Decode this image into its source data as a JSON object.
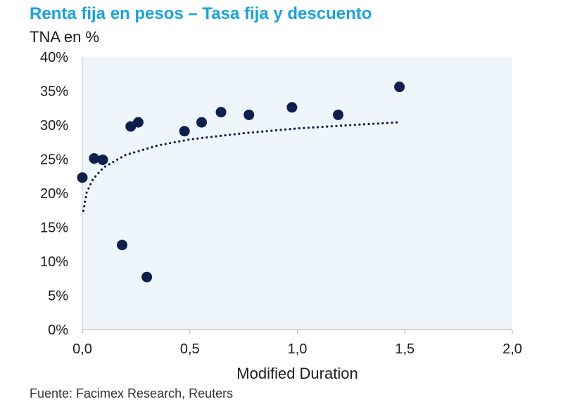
{
  "title": "Renta fija en pesos – Tasa fija y descuento",
  "subtitle": "TNA en %",
  "source": "Fuente: Facimex Research, Reuters",
  "colors": {
    "title": "#1aa3d9",
    "plot_background": "#eef6fc",
    "points": "#0f1f4b",
    "trendline": "#0f1f4b"
  },
  "chart_data": {
    "type": "scatter",
    "title": "Renta fija en pesos – Tasa fija y descuento",
    "subtitle": "TNA en %",
    "xlabel": "Modified Duration",
    "ylabel": "",
    "xlim": [
      0,
      2.0
    ],
    "ylim": [
      0,
      40
    ],
    "x_ticks": [
      "0,0",
      "0,5",
      "1,0",
      "1,5",
      "2,0"
    ],
    "y_ticks": [
      "0%",
      "5%",
      "10%",
      "15%",
      "20%",
      "25%",
      "30%",
      "35%",
      "40%"
    ],
    "grid": false,
    "legend": "none",
    "series": [
      {
        "points": [
          {
            "x": 0.0,
            "y": 22.3
          },
          {
            "x": 0.055,
            "y": 25.1
          },
          {
            "x": 0.095,
            "y": 24.9
          },
          {
            "x": 0.185,
            "y": 12.4
          },
          {
            "x": 0.225,
            "y": 29.8
          },
          {
            "x": 0.26,
            "y": 30.4
          },
          {
            "x": 0.3,
            "y": 7.7
          },
          {
            "x": 0.475,
            "y": 29.1
          },
          {
            "x": 0.555,
            "y": 30.4
          },
          {
            "x": 0.645,
            "y": 31.9
          },
          {
            "x": 0.775,
            "y": 31.5
          },
          {
            "x": 0.975,
            "y": 32.6
          },
          {
            "x": 1.19,
            "y": 31.5
          },
          {
            "x": 1.475,
            "y": 35.6
          }
        ]
      }
    ],
    "trendline": {
      "type": "logarithmic",
      "style": "dotted",
      "points": [
        {
          "x": 0.005,
          "y": 17.4
        },
        {
          "x": 0.02,
          "y": 20.1
        },
        {
          "x": 0.05,
          "y": 22.1
        },
        {
          "x": 0.1,
          "y": 23.8
        },
        {
          "x": 0.2,
          "y": 25.6
        },
        {
          "x": 0.35,
          "y": 27.0
        },
        {
          "x": 0.5,
          "y": 27.9
        },
        {
          "x": 0.75,
          "y": 28.8
        },
        {
          "x": 1.0,
          "y": 29.5
        },
        {
          "x": 1.25,
          "y": 30.0
        },
        {
          "x": 1.47,
          "y": 30.4
        }
      ]
    }
  }
}
